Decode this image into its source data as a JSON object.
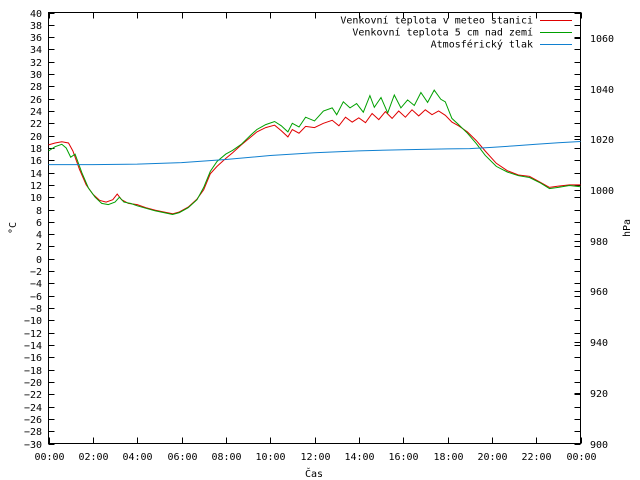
{
  "chart_data": {
    "type": "line",
    "xlabel": "Čas",
    "ylabel_left": "°C",
    "ylabel_right": "hPa",
    "x_ticks": [
      "00:00",
      "02:00",
      "04:00",
      "06:00",
      "08:00",
      "10:00",
      "12:00",
      "14:00",
      "16:00",
      "18:00",
      "20:00",
      "22:00",
      "00:00"
    ],
    "x_range_hours": [
      0,
      24
    ],
    "y_left_range": [
      -30,
      40
    ],
    "y_left_step": 2,
    "y_right_range": [
      900,
      1070
    ],
    "y_right_ticks": [
      900,
      920,
      940,
      960,
      980,
      1000,
      1020,
      1040,
      1060
    ],
    "grid": false,
    "legend_position": "top-right",
    "series": [
      {
        "name": "Venkovní teplota v meteo stanici",
        "axis": "left",
        "color": "#e00000",
        "points": [
          [
            0,
            18.5
          ],
          [
            0.3,
            18.8
          ],
          [
            0.6,
            19.0
          ],
          [
            0.9,
            18.8
          ],
          [
            1.1,
            17.5
          ],
          [
            1.4,
            14.5
          ],
          [
            1.7,
            12.0
          ],
          [
            2.0,
            10.5
          ],
          [
            2.3,
            9.5
          ],
          [
            2.6,
            9.2
          ],
          [
            2.9,
            9.6
          ],
          [
            3.1,
            10.5
          ],
          [
            3.3,
            9.6
          ],
          [
            3.6,
            9.0
          ],
          [
            4.0,
            8.8
          ],
          [
            4.4,
            8.3
          ],
          [
            4.8,
            7.9
          ],
          [
            5.2,
            7.6
          ],
          [
            5.6,
            7.3
          ],
          [
            5.9,
            7.6
          ],
          [
            6.3,
            8.4
          ],
          [
            6.7,
            9.7
          ],
          [
            7.0,
            11.2
          ],
          [
            7.3,
            13.8
          ],
          [
            7.6,
            15.0
          ],
          [
            8.0,
            16.3
          ],
          [
            8.3,
            17.2
          ],
          [
            8.7,
            18.5
          ],
          [
            9.1,
            19.7
          ],
          [
            9.4,
            20.6
          ],
          [
            9.8,
            21.3
          ],
          [
            10.2,
            21.7
          ],
          [
            10.5,
            20.8
          ],
          [
            10.8,
            19.8
          ],
          [
            11.0,
            21.0
          ],
          [
            11.3,
            20.4
          ],
          [
            11.6,
            21.5
          ],
          [
            12.0,
            21.3
          ],
          [
            12.4,
            22.0
          ],
          [
            12.8,
            22.5
          ],
          [
            13.1,
            21.6
          ],
          [
            13.4,
            23.0
          ],
          [
            13.7,
            22.2
          ],
          [
            14.0,
            22.9
          ],
          [
            14.3,
            22.1
          ],
          [
            14.6,
            23.6
          ],
          [
            14.9,
            22.6
          ],
          [
            15.2,
            23.9
          ],
          [
            15.5,
            22.8
          ],
          [
            15.8,
            24.0
          ],
          [
            16.1,
            23.0
          ],
          [
            16.4,
            24.2
          ],
          [
            16.7,
            23.2
          ],
          [
            17.0,
            24.2
          ],
          [
            17.3,
            23.4
          ],
          [
            17.6,
            24.0
          ],
          [
            17.9,
            23.3
          ],
          [
            18.2,
            22.2
          ],
          [
            18.5,
            21.6
          ],
          [
            18.9,
            20.6
          ],
          [
            19.3,
            19.2
          ],
          [
            19.7,
            17.5
          ],
          [
            20.2,
            15.5
          ],
          [
            20.7,
            14.3
          ],
          [
            21.2,
            13.6
          ],
          [
            21.7,
            13.4
          ],
          [
            22.2,
            12.4
          ],
          [
            22.6,
            11.6
          ],
          [
            23.0,
            11.8
          ],
          [
            23.5,
            12.0
          ],
          [
            24.0,
            12.0
          ]
        ]
      },
      {
        "name": "Venkovní teplota 5 cm nad zemí",
        "axis": "left",
        "color": "#00a000",
        "points": [
          [
            0,
            17.5
          ],
          [
            0.3,
            18.2
          ],
          [
            0.6,
            18.6
          ],
          [
            0.8,
            18.0
          ],
          [
            1.0,
            16.5
          ],
          [
            1.2,
            17.0
          ],
          [
            1.5,
            14.0
          ],
          [
            1.8,
            11.5
          ],
          [
            2.1,
            10.0
          ],
          [
            2.4,
            9.0
          ],
          [
            2.7,
            8.8
          ],
          [
            3.0,
            9.2
          ],
          [
            3.2,
            10.0
          ],
          [
            3.4,
            9.2
          ],
          [
            3.7,
            9.0
          ],
          [
            4.0,
            8.6
          ],
          [
            4.4,
            8.2
          ],
          [
            4.8,
            7.8
          ],
          [
            5.2,
            7.5
          ],
          [
            5.6,
            7.2
          ],
          [
            5.9,
            7.5
          ],
          [
            6.3,
            8.3
          ],
          [
            6.7,
            9.6
          ],
          [
            7.0,
            11.6
          ],
          [
            7.3,
            14.2
          ],
          [
            7.6,
            15.8
          ],
          [
            8.0,
            17.0
          ],
          [
            8.3,
            17.6
          ],
          [
            8.7,
            18.6
          ],
          [
            9.1,
            20.0
          ],
          [
            9.4,
            21.0
          ],
          [
            9.8,
            21.8
          ],
          [
            10.2,
            22.3
          ],
          [
            10.5,
            21.6
          ],
          [
            10.8,
            20.6
          ],
          [
            11.0,
            22.0
          ],
          [
            11.3,
            21.4
          ],
          [
            11.6,
            23.0
          ],
          [
            12.0,
            22.4
          ],
          [
            12.4,
            24.0
          ],
          [
            12.8,
            24.5
          ],
          [
            13.0,
            23.4
          ],
          [
            13.3,
            25.5
          ],
          [
            13.6,
            24.5
          ],
          [
            13.9,
            25.2
          ],
          [
            14.2,
            23.8
          ],
          [
            14.5,
            26.5
          ],
          [
            14.7,
            24.6
          ],
          [
            15.0,
            26.2
          ],
          [
            15.3,
            23.7
          ],
          [
            15.6,
            26.6
          ],
          [
            15.9,
            24.5
          ],
          [
            16.2,
            25.8
          ],
          [
            16.5,
            24.9
          ],
          [
            16.8,
            27.0
          ],
          [
            17.1,
            25.4
          ],
          [
            17.4,
            27.4
          ],
          [
            17.7,
            25.9
          ],
          [
            17.9,
            25.5
          ],
          [
            18.2,
            22.8
          ],
          [
            18.5,
            21.8
          ],
          [
            18.9,
            20.4
          ],
          [
            19.3,
            18.7
          ],
          [
            19.7,
            16.8
          ],
          [
            20.2,
            15.0
          ],
          [
            20.7,
            14.1
          ],
          [
            21.2,
            13.5
          ],
          [
            21.7,
            13.2
          ],
          [
            22.2,
            12.3
          ],
          [
            22.6,
            11.4
          ],
          [
            23.0,
            11.6
          ],
          [
            23.5,
            11.9
          ],
          [
            24.0,
            11.7
          ]
        ]
      },
      {
        "name": "Atmosférický tlak",
        "axis": "right",
        "color": "#1080d0",
        "points": [
          [
            0,
            1010
          ],
          [
            2,
            1010
          ],
          [
            4,
            1010.2
          ],
          [
            6,
            1010.8
          ],
          [
            8,
            1012
          ],
          [
            10,
            1013.6
          ],
          [
            12,
            1014.7
          ],
          [
            14,
            1015.4
          ],
          [
            16,
            1015.9
          ],
          [
            18,
            1016.2
          ],
          [
            19,
            1016.3
          ],
          [
            20,
            1016.8
          ],
          [
            21,
            1017.4
          ],
          [
            22,
            1018.0
          ],
          [
            23,
            1018.6
          ],
          [
            24,
            1019.1
          ]
        ]
      }
    ]
  }
}
